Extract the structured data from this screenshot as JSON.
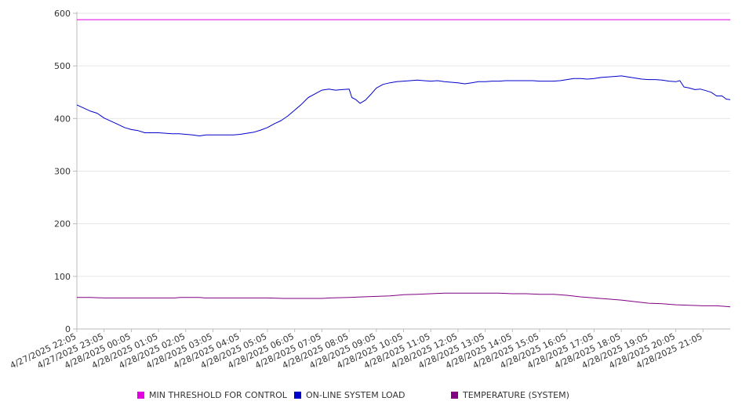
{
  "chart_data": {
    "type": "line",
    "title": "",
    "xlabel": "",
    "ylabel": "",
    "ylim": [
      0,
      600
    ],
    "y_ticks": [
      0,
      100,
      200,
      300,
      400,
      500,
      600
    ],
    "x_tick_labels": [
      "4/27/2025 22:05",
      "4/27/2025 23:05",
      "4/28/2025 00:05",
      "4/28/2025 01:05",
      "4/28/2025 02:05",
      "4/28/2025 03:05",
      "4/28/2025 04:05",
      "4/28/2025 05:05",
      "4/28/2025 06:05",
      "4/28/2025 07:05",
      "4/28/2025 08:05",
      "4/28/2025 09:05",
      "4/28/2025 10:05",
      "4/28/2025 11:05",
      "4/28/2025 12:05",
      "4/28/2025 13:05",
      "4/28/2025 14:05",
      "4/28/2025 15:05",
      "4/28/2025 16:05",
      "4/28/2025 17:05",
      "4/28/2025 18:05",
      "4/28/2025 19:05",
      "4/28/2025 20:05",
      "4/28/2025 21:05"
    ],
    "x_range_hours": [
      0,
      24
    ],
    "grid": "horizontal",
    "legend_position": "bottom",
    "series": [
      {
        "name": "MIN THRESHOLD FOR CONTROL",
        "color": "#e000e0",
        "points": [
          [
            0,
            588
          ],
          [
            24,
            588
          ]
        ]
      },
      {
        "name": "ON-LINE SYSTEM LOAD",
        "color": "#0000cc",
        "points": [
          [
            0,
            426
          ],
          [
            0.25,
            420
          ],
          [
            0.5,
            414
          ],
          [
            0.75,
            410
          ],
          [
            1.0,
            401
          ],
          [
            1.25,
            395
          ],
          [
            1.5,
            389
          ],
          [
            1.75,
            383
          ],
          [
            2.0,
            379
          ],
          [
            2.25,
            377
          ],
          [
            2.5,
            373
          ],
          [
            2.75,
            373
          ],
          [
            3.0,
            373
          ],
          [
            3.25,
            372
          ],
          [
            3.5,
            371
          ],
          [
            3.75,
            371
          ],
          [
            4.0,
            370
          ],
          [
            4.25,
            369
          ],
          [
            4.5,
            367
          ],
          [
            4.75,
            369
          ],
          [
            5.0,
            369
          ],
          [
            5.25,
            369
          ],
          [
            5.5,
            369
          ],
          [
            5.75,
            369
          ],
          [
            6.0,
            370
          ],
          [
            6.25,
            372
          ],
          [
            6.5,
            374
          ],
          [
            6.75,
            378
          ],
          [
            7.0,
            383
          ],
          [
            7.25,
            390
          ],
          [
            7.5,
            396
          ],
          [
            7.75,
            405
          ],
          [
            8.0,
            416
          ],
          [
            8.25,
            427
          ],
          [
            8.5,
            440
          ],
          [
            8.75,
            447
          ],
          [
            9.0,
            454
          ],
          [
            9.25,
            456
          ],
          [
            9.5,
            454
          ],
          [
            9.75,
            455
          ],
          [
            10.0,
            456
          ],
          [
            10.1,
            440
          ],
          [
            10.25,
            436
          ],
          [
            10.4,
            429
          ],
          [
            10.6,
            435
          ],
          [
            10.8,
            446
          ],
          [
            11.0,
            458
          ],
          [
            11.25,
            465
          ],
          [
            11.5,
            468
          ],
          [
            11.75,
            470
          ],
          [
            12.0,
            471
          ],
          [
            12.25,
            472
          ],
          [
            12.5,
            473
          ],
          [
            12.75,
            472
          ],
          [
            13.0,
            471
          ],
          [
            13.25,
            472
          ],
          [
            13.5,
            470
          ],
          [
            13.75,
            469
          ],
          [
            14.0,
            468
          ],
          [
            14.25,
            466
          ],
          [
            14.5,
            468
          ],
          [
            14.75,
            470
          ],
          [
            15.0,
            470
          ],
          [
            15.25,
            471
          ],
          [
            15.5,
            471
          ],
          [
            15.75,
            472
          ],
          [
            16.0,
            472
          ],
          [
            16.25,
            472
          ],
          [
            16.5,
            472
          ],
          [
            16.75,
            472
          ],
          [
            17.0,
            471
          ],
          [
            17.25,
            471
          ],
          [
            17.5,
            471
          ],
          [
            17.75,
            472
          ],
          [
            18.0,
            474
          ],
          [
            18.25,
            476
          ],
          [
            18.5,
            476
          ],
          [
            18.75,
            475
          ],
          [
            19.0,
            476
          ],
          [
            19.25,
            478
          ],
          [
            19.5,
            479
          ],
          [
            19.75,
            480
          ],
          [
            20.0,
            481
          ],
          [
            20.25,
            479
          ],
          [
            20.5,
            477
          ],
          [
            20.75,
            475
          ],
          [
            21.0,
            474
          ],
          [
            21.25,
            474
          ],
          [
            21.5,
            473
          ],
          [
            21.75,
            471
          ],
          [
            22.0,
            470
          ],
          [
            22.15,
            472
          ],
          [
            22.3,
            460
          ],
          [
            22.5,
            458
          ],
          [
            22.7,
            455
          ],
          [
            22.9,
            456
          ],
          [
            23.1,
            453
          ],
          [
            23.3,
            450
          ],
          [
            23.5,
            443
          ],
          [
            23.7,
            443
          ],
          [
            23.85,
            437
          ],
          [
            24.0,
            436
          ]
        ]
      },
      {
        "name": "TEMPERATURE (SYSTEM)",
        "color": "#800080",
        "points": [
          [
            0,
            60
          ],
          [
            0.5,
            60
          ],
          [
            1.0,
            59
          ],
          [
            2.0,
            59
          ],
          [
            3.0,
            59
          ],
          [
            3.6,
            59
          ],
          [
            3.8,
            60
          ],
          [
            4.5,
            60
          ],
          [
            4.7,
            59
          ],
          [
            5.5,
            59
          ],
          [
            7.0,
            59
          ],
          [
            7.6,
            58
          ],
          [
            8.5,
            58
          ],
          [
            9.0,
            58
          ],
          [
            9.3,
            59
          ],
          [
            10.0,
            60
          ],
          [
            10.5,
            61
          ],
          [
            11.0,
            62
          ],
          [
            11.5,
            63
          ],
          [
            12.0,
            65
          ],
          [
            12.5,
            66
          ],
          [
            13.0,
            67
          ],
          [
            13.5,
            68
          ],
          [
            14.0,
            68
          ],
          [
            14.5,
            68
          ],
          [
            15.0,
            68
          ],
          [
            15.5,
            68
          ],
          [
            16.0,
            67
          ],
          [
            16.5,
            67
          ],
          [
            17.0,
            66
          ],
          [
            17.5,
            66
          ],
          [
            18.0,
            64
          ],
          [
            18.5,
            61
          ],
          [
            19.0,
            59
          ],
          [
            19.5,
            57
          ],
          [
            20.0,
            55
          ],
          [
            20.5,
            52
          ],
          [
            21.0,
            49
          ],
          [
            21.5,
            48
          ],
          [
            22.0,
            46
          ],
          [
            22.5,
            45
          ],
          [
            23.0,
            44
          ],
          [
            23.5,
            44
          ],
          [
            23.8,
            43
          ],
          [
            24.0,
            42
          ]
        ]
      }
    ]
  }
}
